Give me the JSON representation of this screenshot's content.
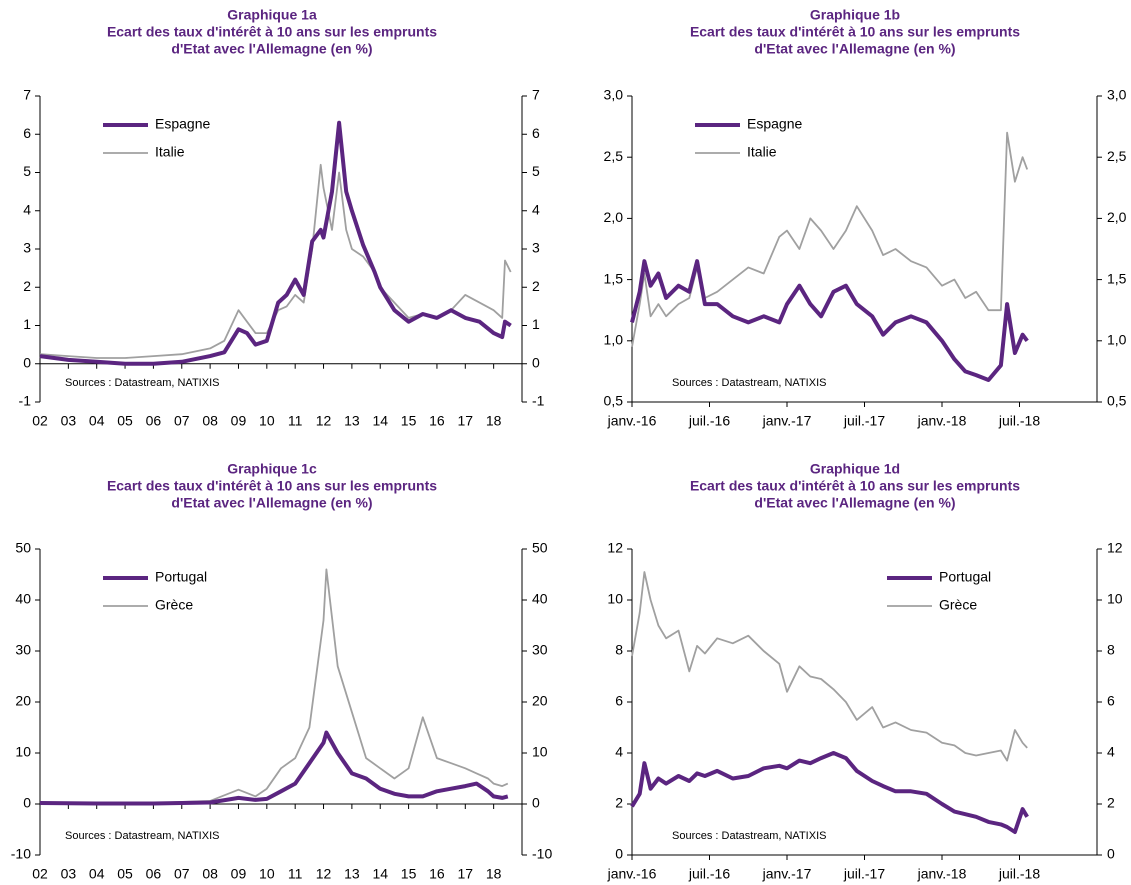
{
  "chart_data": [
    {
      "type": "line",
      "title": "Graphique 1a",
      "subtitle": [
        "Ecart des taux d'intérêt à 10 ans sur les emprunts",
        "d'Etat avec l'Allemagne (en %)"
      ],
      "annotation": "Sources : Datastream, NATIXIS",
      "legend": "upper left",
      "x": [
        2002,
        2003,
        2004,
        2005,
        2006,
        2007,
        2008,
        2008.5,
        2009,
        2009.3,
        2009.6,
        2010,
        2010.4,
        2010.7,
        2011,
        2011.3,
        2011.6,
        2011.9,
        2012,
        2012.3,
        2012.55,
        2012.8,
        2013,
        2013.4,
        2013.8,
        2014,
        2014.5,
        2015,
        2015.5,
        2016,
        2016.5,
        2017,
        2017.5,
        2018,
        2018.3,
        2018.4,
        2018.6
      ],
      "series": [
        {
          "name": "Espagne",
          "color": "#5b2580",
          "values": [
            0.2,
            0.1,
            0.05,
            0,
            0,
            0.05,
            0.2,
            0.3,
            0.9,
            0.8,
            0.5,
            0.6,
            1.6,
            1.8,
            2.2,
            1.8,
            3.2,
            3.5,
            3.3,
            4.5,
            6.3,
            4.5,
            4.0,
            3.1,
            2.4,
            2.0,
            1.4,
            1.1,
            1.3,
            1.2,
            1.4,
            1.2,
            1.1,
            0.8,
            0.7,
            1.1,
            1.0
          ]
        },
        {
          "name": "Italie",
          "color": "#a0a0a0",
          "values": [
            0.25,
            0.2,
            0.15,
            0.15,
            0.2,
            0.25,
            0.4,
            0.6,
            1.4,
            1.1,
            0.8,
            0.8,
            1.4,
            1.5,
            1.8,
            1.6,
            3.0,
            5.2,
            4.6,
            3.5,
            5.0,
            3.5,
            3.0,
            2.8,
            2.4,
            2.0,
            1.6,
            1.2,
            1.3,
            1.2,
            1.4,
            1.8,
            1.6,
            1.4,
            1.2,
            2.7,
            2.4
          ]
        }
      ],
      "xlim": [
        2002,
        2019
      ],
      "xticks": [
        {
          "value": 2002,
          "label": "02"
        },
        {
          "value": 2003,
          "label": "03"
        },
        {
          "value": 2004,
          "label": "04"
        },
        {
          "value": 2005,
          "label": "05"
        },
        {
          "value": 2006,
          "label": "06"
        },
        {
          "value": 2007,
          "label": "07"
        },
        {
          "value": 2008,
          "label": "08"
        },
        {
          "value": 2009,
          "label": "09"
        },
        {
          "value": 2010,
          "label": "10"
        },
        {
          "value": 2011,
          "label": "11"
        },
        {
          "value": 2012,
          "label": "12"
        },
        {
          "value": 2013,
          "label": "13"
        },
        {
          "value": 2014,
          "label": "14"
        },
        {
          "value": 2015,
          "label": "15"
        },
        {
          "value": 2016,
          "label": "16"
        },
        {
          "value": 2017,
          "label": "17"
        },
        {
          "value": 2018,
          "label": "18"
        }
      ],
      "ylim": [
        -1,
        7
      ],
      "yticks": [
        -1,
        0,
        1,
        2,
        3,
        4,
        5,
        6,
        7
      ]
    },
    {
      "type": "line",
      "title": "Graphique 1b",
      "subtitle": [
        "Ecart des taux d'intérêt à 10 ans sur les emprunts",
        "d'Etat avec l'Allemagne (en %)"
      ],
      "annotation": "Sources : Datastream, NATIXIS",
      "legend": "upper left",
      "x": [
        2016,
        2016.05,
        2016.08,
        2016.12,
        2016.17,
        2016.22,
        2016.3,
        2016.37,
        2016.42,
        2016.47,
        2016.55,
        2016.65,
        2016.75,
        2016.85,
        2016.95,
        2017,
        2017.08,
        2017.15,
        2017.22,
        2017.3,
        2017.38,
        2017.45,
        2017.55,
        2017.62,
        2017.7,
        2017.8,
        2017.9,
        2018,
        2018.08,
        2018.15,
        2018.22,
        2018.3,
        2018.38,
        2018.42,
        2018.47,
        2018.52,
        2018.55
      ],
      "series": [
        {
          "name": "Espagne",
          "color": "#5b2580",
          "values": [
            1.15,
            1.4,
            1.65,
            1.45,
            1.55,
            1.35,
            1.45,
            1.4,
            1.65,
            1.3,
            1.3,
            1.2,
            1.15,
            1.2,
            1.15,
            1.3,
            1.45,
            1.3,
            1.2,
            1.4,
            1.45,
            1.3,
            1.2,
            1.05,
            1.15,
            1.2,
            1.15,
            1.0,
            0.85,
            0.75,
            0.72,
            0.68,
            0.8,
            1.3,
            0.9,
            1.05,
            1.0
          ]
        },
        {
          "name": "Italie",
          "color": "#a0a0a0",
          "values": [
            0.95,
            1.3,
            1.55,
            1.2,
            1.3,
            1.2,
            1.3,
            1.35,
            1.6,
            1.35,
            1.4,
            1.5,
            1.6,
            1.55,
            1.85,
            1.9,
            1.75,
            2.0,
            1.9,
            1.75,
            1.9,
            2.1,
            1.9,
            1.7,
            1.75,
            1.65,
            1.6,
            1.45,
            1.5,
            1.35,
            1.4,
            1.25,
            1.25,
            2.7,
            2.3,
            2.5,
            2.4
          ]
        }
      ],
      "xlim": [
        2016,
        2019
      ],
      "xticks": [
        {
          "value": 2016,
          "label": "janv.-16"
        },
        {
          "value": 2016.5,
          "label": "juil.-16"
        },
        {
          "value": 2017,
          "label": "janv.-17"
        },
        {
          "value": 2017.5,
          "label": "juil.-17"
        },
        {
          "value": 2018,
          "label": "janv.-18"
        },
        {
          "value": 2018.5,
          "label": "juil.-18"
        }
      ],
      "ylim": [
        0.5,
        3.0
      ],
      "yticks": [
        {
          "value": 0.5,
          "label": "0,5"
        },
        {
          "value": 1.0,
          "label": "1,0"
        },
        {
          "value": 1.5,
          "label": "1,5"
        },
        {
          "value": 2.0,
          "label": "2,0"
        },
        {
          "value": 2.5,
          "label": "2,5"
        },
        {
          "value": 3.0,
          "label": "3,0"
        }
      ]
    },
    {
      "type": "line",
      "title": "Graphique 1c",
      "subtitle": [
        "Ecart des taux d'intérêt à 10 ans sur les emprunts",
        "d'Etat avec l'Allemagne (en %)"
      ],
      "annotation": "Sources : Datastream, NATIXIS",
      "legend": "upper left",
      "x": [
        2002,
        2004,
        2006,
        2008,
        2009,
        2009.6,
        2010,
        2010.5,
        2011,
        2011.5,
        2012,
        2012.1,
        2012.5,
        2013,
        2013.5,
        2014,
        2014.5,
        2015,
        2015.5,
        2016,
        2016.5,
        2017,
        2017.4,
        2017.8,
        2018,
        2018.3,
        2018.5
      ],
      "series": [
        {
          "name": "Portugal",
          "color": "#5b2580",
          "values": [
            0.2,
            0.1,
            0.1,
            0.3,
            1.2,
            0.8,
            1.0,
            2.5,
            4,
            8,
            12,
            14,
            10,
            6,
            5,
            3,
            2,
            1.5,
            1.5,
            2.5,
            3,
            3.5,
            4,
            2.5,
            1.5,
            1.2,
            1.5
          ]
        },
        {
          "name": "Grèce",
          "color": "#a0a0a0",
          "values": [
            0.3,
            0.2,
            0.2,
            0.6,
            2.8,
            1.5,
            3,
            7,
            9,
            15,
            36,
            46,
            27,
            18,
            9,
            7,
            5,
            7,
            17,
            9,
            8,
            7,
            6,
            5,
            4,
            3.5,
            4
          ]
        }
      ],
      "xlim": [
        2002,
        2019
      ],
      "xticks": [
        {
          "value": 2002,
          "label": "02"
        },
        {
          "value": 2003,
          "label": "03"
        },
        {
          "value": 2004,
          "label": "04"
        },
        {
          "value": 2005,
          "label": "05"
        },
        {
          "value": 2006,
          "label": "06"
        },
        {
          "value": 2007,
          "label": "07"
        },
        {
          "value": 2008,
          "label": "08"
        },
        {
          "value": 2009,
          "label": "09"
        },
        {
          "value": 2010,
          "label": "10"
        },
        {
          "value": 2011,
          "label": "11"
        },
        {
          "value": 2012,
          "label": "12"
        },
        {
          "value": 2013,
          "label": "13"
        },
        {
          "value": 2014,
          "label": "14"
        },
        {
          "value": 2015,
          "label": "15"
        },
        {
          "value": 2016,
          "label": "16"
        },
        {
          "value": 2017,
          "label": "17"
        },
        {
          "value": 2018,
          "label": "18"
        }
      ],
      "ylim": [
        -10,
        50
      ],
      "yticks": [
        -10,
        0,
        10,
        20,
        30,
        40,
        50
      ]
    },
    {
      "type": "line",
      "title": "Graphique 1d",
      "subtitle": [
        "Ecart des taux d'intérêt à 10 ans sur les emprunts",
        "d'Etat avec l'Allemagne (en %)"
      ],
      "annotation": "Sources : Datastream, NATIXIS",
      "legend": "upper right",
      "x": [
        2016,
        2016.05,
        2016.08,
        2016.12,
        2016.17,
        2016.22,
        2016.3,
        2016.37,
        2016.42,
        2016.47,
        2016.55,
        2016.65,
        2016.75,
        2016.85,
        2016.95,
        2017,
        2017.08,
        2017.15,
        2017.22,
        2017.3,
        2017.38,
        2017.45,
        2017.55,
        2017.62,
        2017.7,
        2017.8,
        2017.9,
        2018,
        2018.08,
        2018.15,
        2018.22,
        2018.3,
        2018.38,
        2018.42,
        2018.47,
        2018.52,
        2018.55
      ],
      "series": [
        {
          "name": "Portugal",
          "color": "#5b2580",
          "values": [
            1.9,
            2.4,
            3.6,
            2.6,
            3.0,
            2.8,
            3.1,
            2.9,
            3.2,
            3.1,
            3.3,
            3.0,
            3.1,
            3.4,
            3.5,
            3.4,
            3.7,
            3.6,
            3.8,
            4.0,
            3.8,
            3.3,
            2.9,
            2.7,
            2.5,
            2.5,
            2.4,
            2.0,
            1.7,
            1.6,
            1.5,
            1.3,
            1.2,
            1.1,
            0.9,
            1.8,
            1.5
          ]
        },
        {
          "name": "Grèce",
          "color": "#a0a0a0",
          "values": [
            7.8,
            9.5,
            11.1,
            10,
            9.0,
            8.5,
            8.8,
            7.2,
            8.2,
            7.9,
            8.5,
            8.3,
            8.6,
            8.0,
            7.5,
            6.4,
            7.4,
            7.0,
            6.9,
            6.5,
            6.0,
            5.3,
            5.8,
            5.0,
            5.2,
            4.9,
            4.8,
            4.4,
            4.3,
            4.0,
            3.9,
            4.0,
            4.1,
            3.7,
            4.9,
            4.4,
            4.2
          ]
        }
      ],
      "xlim": [
        2016,
        2019
      ],
      "xticks": [
        {
          "value": 2016,
          "label": "janv.-16"
        },
        {
          "value": 2016.5,
          "label": "juil.-16"
        },
        {
          "value": 2017,
          "label": "janv.-17"
        },
        {
          "value": 2017.5,
          "label": "juil.-17"
        },
        {
          "value": 2018,
          "label": "janv.-18"
        },
        {
          "value": 2018.5,
          "label": "juil.-18"
        }
      ],
      "ylim": [
        0,
        12
      ],
      "yticks": [
        0,
        2,
        4,
        6,
        8,
        10,
        12
      ]
    }
  ]
}
